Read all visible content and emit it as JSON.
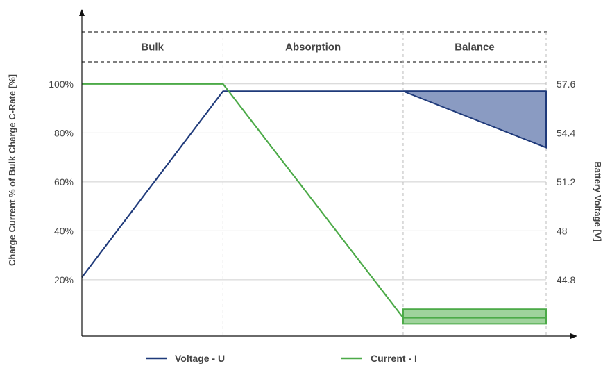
{
  "chart_data": {
    "type": "line",
    "phases": [
      "Bulk",
      "Absorption",
      "Balance"
    ],
    "y_left": {
      "label": "Charge Current % of Bulk Charge C-Rate [%]",
      "ticks": [
        "100%",
        "80%",
        "60%",
        "40%",
        "20%"
      ],
      "tick_values": [
        100,
        80,
        60,
        40,
        20
      ],
      "lim": [
        -3,
        130
      ]
    },
    "y_right": {
      "label": "Battery Voltage [V]",
      "ticks": [
        "57.6",
        "54.4",
        "51.2",
        "48",
        "44.8"
      ],
      "tick_values": [
        57.6,
        54.4,
        51.2,
        48,
        44.8
      ]
    },
    "x_range": [
      0,
      100
    ],
    "phase_boundaries": [
      30.4,
      69.2
    ],
    "series": [
      {
        "name": "Voltage - U",
        "color": "#1f3a7a",
        "points": [
          [
            0,
            21
          ],
          [
            30.4,
            97
          ],
          [
            69.2,
            97
          ],
          [
            100,
            97
          ]
        ],
        "balance_lower": [
          [
            69.2,
            97
          ],
          [
            100,
            74
          ]
        ],
        "fill_color": "#8a9bc2"
      },
      {
        "name": "Current - I",
        "color": "#4caa48",
        "points": [
          [
            0,
            100
          ],
          [
            30.4,
            100
          ],
          [
            69.2,
            4.5
          ],
          [
            100,
            4.5
          ]
        ],
        "balance_band": [
          [
            69.2,
            2
          ],
          [
            100,
            8
          ]
        ],
        "fill_color": "#9fd39c"
      }
    ],
    "legend": [
      "Voltage - U",
      "Current - I"
    ],
    "legend_placement": "bottom"
  }
}
